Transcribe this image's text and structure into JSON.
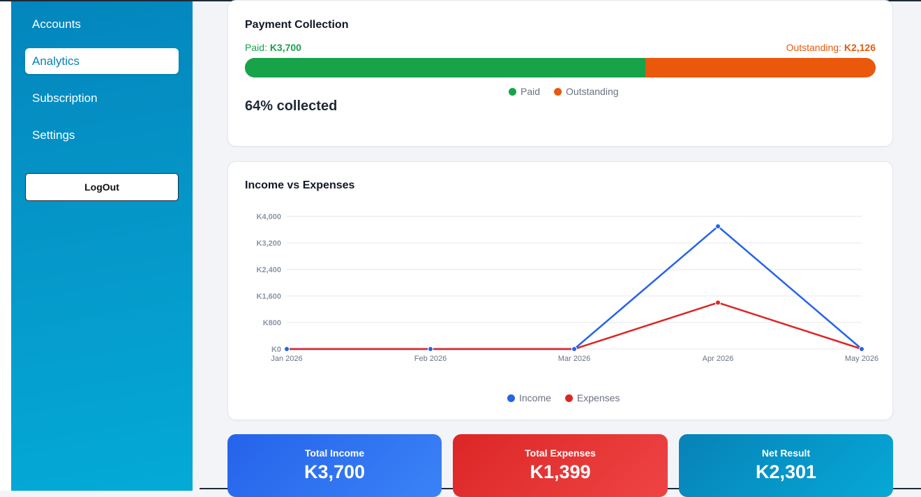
{
  "sidebar": {
    "items": [
      {
        "label": "Accounts"
      },
      {
        "label": "Analytics"
      },
      {
        "label": "Subscription"
      },
      {
        "label": "Settings"
      }
    ],
    "active_index": 1,
    "logout_label": "LogOut"
  },
  "payment": {
    "title": "Payment Collection",
    "paid_prefix": "Paid: ",
    "paid_value": "K3,700",
    "outstanding_prefix": "Outstanding: ",
    "outstanding_value": "K2,126",
    "paid_fraction": 0.635,
    "legend": [
      "Paid",
      "Outstanding"
    ],
    "collected_text": "64% collected",
    "colors": {
      "paid": "#16a34a",
      "outstanding": "#ea580c"
    }
  },
  "income_chart": {
    "title": "Income vs Expenses",
    "legend": [
      "Income",
      "Expenses"
    ],
    "colors": {
      "income": "#2563eb",
      "expenses": "#dc2626"
    }
  },
  "chart_data": {
    "type": "line",
    "categories": [
      "Jan 2026",
      "Feb 2026",
      "Mar 2026",
      "Apr 2026",
      "May 2026"
    ],
    "series": [
      {
        "name": "Income",
        "values": [
          0,
          0,
          0,
          3700,
          0
        ]
      },
      {
        "name": "Expenses",
        "values": [
          0,
          0,
          0,
          1399,
          0
        ]
      }
    ],
    "yticks": [
      "K0",
      "K800",
      "K1,600",
      "K2,400",
      "K3,200",
      "K4,000"
    ],
    "ylim": [
      0,
      4000
    ],
    "grid": true,
    "legend_position": "bottom"
  },
  "stats": [
    {
      "label": "Total Income",
      "value": "K3,700"
    },
    {
      "label": "Total Expenses",
      "value": "K1,399"
    },
    {
      "label": "Net Result",
      "value": "K2,301"
    }
  ]
}
